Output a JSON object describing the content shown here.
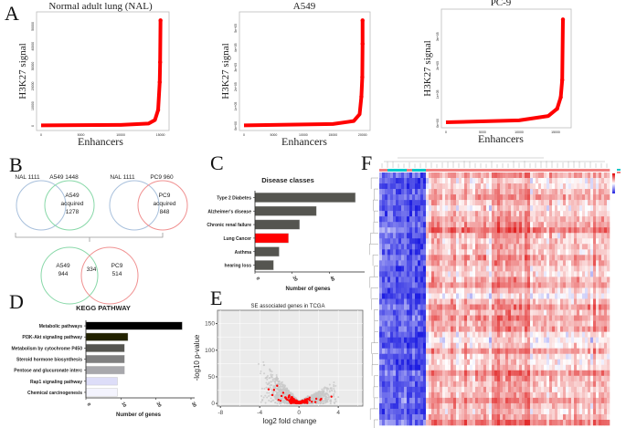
{
  "panel_labels": [
    "A",
    "B",
    "C",
    "D",
    "E",
    "F"
  ],
  "chart_data": [
    {
      "panel": "A",
      "type": "scatter",
      "title": "Normal adult lung (NAL)",
      "xlabel": "Enhancers",
      "ylabel": "H3K27 signal",
      "xticks": [
        "0",
        "5000",
        "10000",
        "15000"
      ],
      "yticks": [
        "0",
        "10000",
        "20000",
        "30000",
        "40000",
        "50000"
      ],
      "xlim": [
        0,
        15500
      ],
      "ylim": [
        0,
        55000
      ],
      "color": "#ff0000",
      "points": [
        [
          0,
          300
        ],
        [
          10000,
          500
        ],
        [
          13500,
          1200
        ],
        [
          14300,
          3000
        ],
        [
          14700,
          8000
        ],
        [
          14900,
          22000
        ],
        [
          14950,
          32000
        ],
        [
          15000,
          53000
        ]
      ]
    },
    {
      "panel": "A",
      "type": "scatter",
      "title": "A549",
      "xlabel": "Enhancers",
      "ylabel": "H3K27 signal",
      "xticks": [
        "0",
        "5000",
        "10000",
        "15000",
        "20000"
      ],
      "yticks": [
        "0e+00",
        "1e+05",
        "2e+05",
        "3e+05",
        "4e+05",
        "5e+05"
      ],
      "xlim": [
        0,
        20500
      ],
      "ylim": [
        0,
        560000
      ],
      "color": "#ff0000",
      "points": [
        [
          0,
          3000
        ],
        [
          15000,
          10000
        ],
        [
          18500,
          25000
        ],
        [
          19500,
          60000
        ],
        [
          19800,
          150000
        ],
        [
          19950,
          250000
        ],
        [
          20000,
          420000
        ],
        [
          20000,
          540000
        ]
      ]
    },
    {
      "panel": "A",
      "type": "scatter",
      "title": "PC-9",
      "xlabel": "Enhancers",
      "ylabel": "H3K27 signal",
      "xticks": [
        "0",
        "5000",
        "10000",
        "15000"
      ],
      "yticks": [
        "0e+00",
        "1e+05",
        "2e+05",
        "3e+05"
      ],
      "xlim": [
        0,
        16500
      ],
      "ylim": [
        0,
        380000
      ],
      "color": "#ff0000",
      "points": [
        [
          0,
          3000
        ],
        [
          10000,
          10000
        ],
        [
          14000,
          25000
        ],
        [
          15200,
          50000
        ],
        [
          15700,
          90000
        ],
        [
          15900,
          150000
        ],
        [
          16000,
          360000
        ]
      ]
    },
    {
      "panel": "C",
      "type": "bar",
      "orientation": "horizontal",
      "title": "Disease classes",
      "xlabel": "Number of genes",
      "categories": [
        "Type 2 Diabetes",
        "Alzheimer's disease",
        "Chronic renal failure",
        "Lung Cancer",
        "Asthma",
        "hearing loss"
      ],
      "values": [
        54,
        33,
        24,
        18,
        13,
        10
      ],
      "colors": [
        "#555550",
        "#555550",
        "#555550",
        "#ff0000",
        "#555550",
        "#555550"
      ],
      "xticks": [
        "0",
        "20",
        "40"
      ],
      "xlim": [
        0,
        57
      ]
    },
    {
      "panel": "D",
      "type": "bar",
      "orientation": "horizontal",
      "title": "KEGG PATHWAY",
      "xlabel": "Number of genes",
      "categories": [
        "Metabolic pathways",
        "PI3K-Akt signaling pathway",
        "Metabolism by cytochrome P450",
        "Steroid hormone biosynthesis",
        "Pentose and glucuronate interc",
        "Rap1 signaling pathway",
        "Chemical carcinogenesis"
      ],
      "values": [
        27.5,
        12,
        11,
        11,
        11,
        9,
        9
      ],
      "colors": [
        "#000000",
        "#222200",
        "#555550",
        "#808080",
        "#a8a8ac",
        "#ddddf8",
        "#f4f4fe"
      ],
      "xticks": [
        "0",
        "10",
        "20",
        "30"
      ],
      "xlim": [
        0,
        30
      ]
    },
    {
      "panel": "E",
      "type": "scatter",
      "title": "SE associated genes in TCGA",
      "xlabel": "log2 fold change",
      "ylabel": "-log10 p-value",
      "xticks": [
        "-8",
        "-4",
        "0",
        "4"
      ],
      "yticks": [
        "0",
        "50",
        "100",
        "150"
      ],
      "xlim": [
        -8.3,
        6.5
      ],
      "ylim": [
        -5,
        175
      ],
      "grid": true,
      "colors": {
        "all_genes": "#c8c8c8",
        "se_genes": "#ff0000"
      }
    },
    {
      "panel": "F",
      "type": "heatmap",
      "colorscale": [
        "#2020e0",
        "#ffffff",
        "#e00000"
      ],
      "annotation_colors": [
        "#00c8c8",
        "#f08080"
      ]
    }
  ],
  "venn": {
    "top_left": {
      "a_label": "NAL 1111",
      "b_label": "A549 1448",
      "b_only": [
        "A549",
        "acquired",
        "1278"
      ]
    },
    "top_right": {
      "a_label": "NAL 1111",
      "b_label": "PC9 960",
      "b_only": [
        "PC9",
        "acquired",
        "848"
      ]
    },
    "bottom": {
      "a_only": [
        "A549",
        "944"
      ],
      "overlap": "334",
      "b_only": [
        "PC9",
        "514"
      ]
    },
    "colors": {
      "nal": "#a8c0dc",
      "a549": "#88d8a8",
      "pc9": "#f09090"
    }
  }
}
